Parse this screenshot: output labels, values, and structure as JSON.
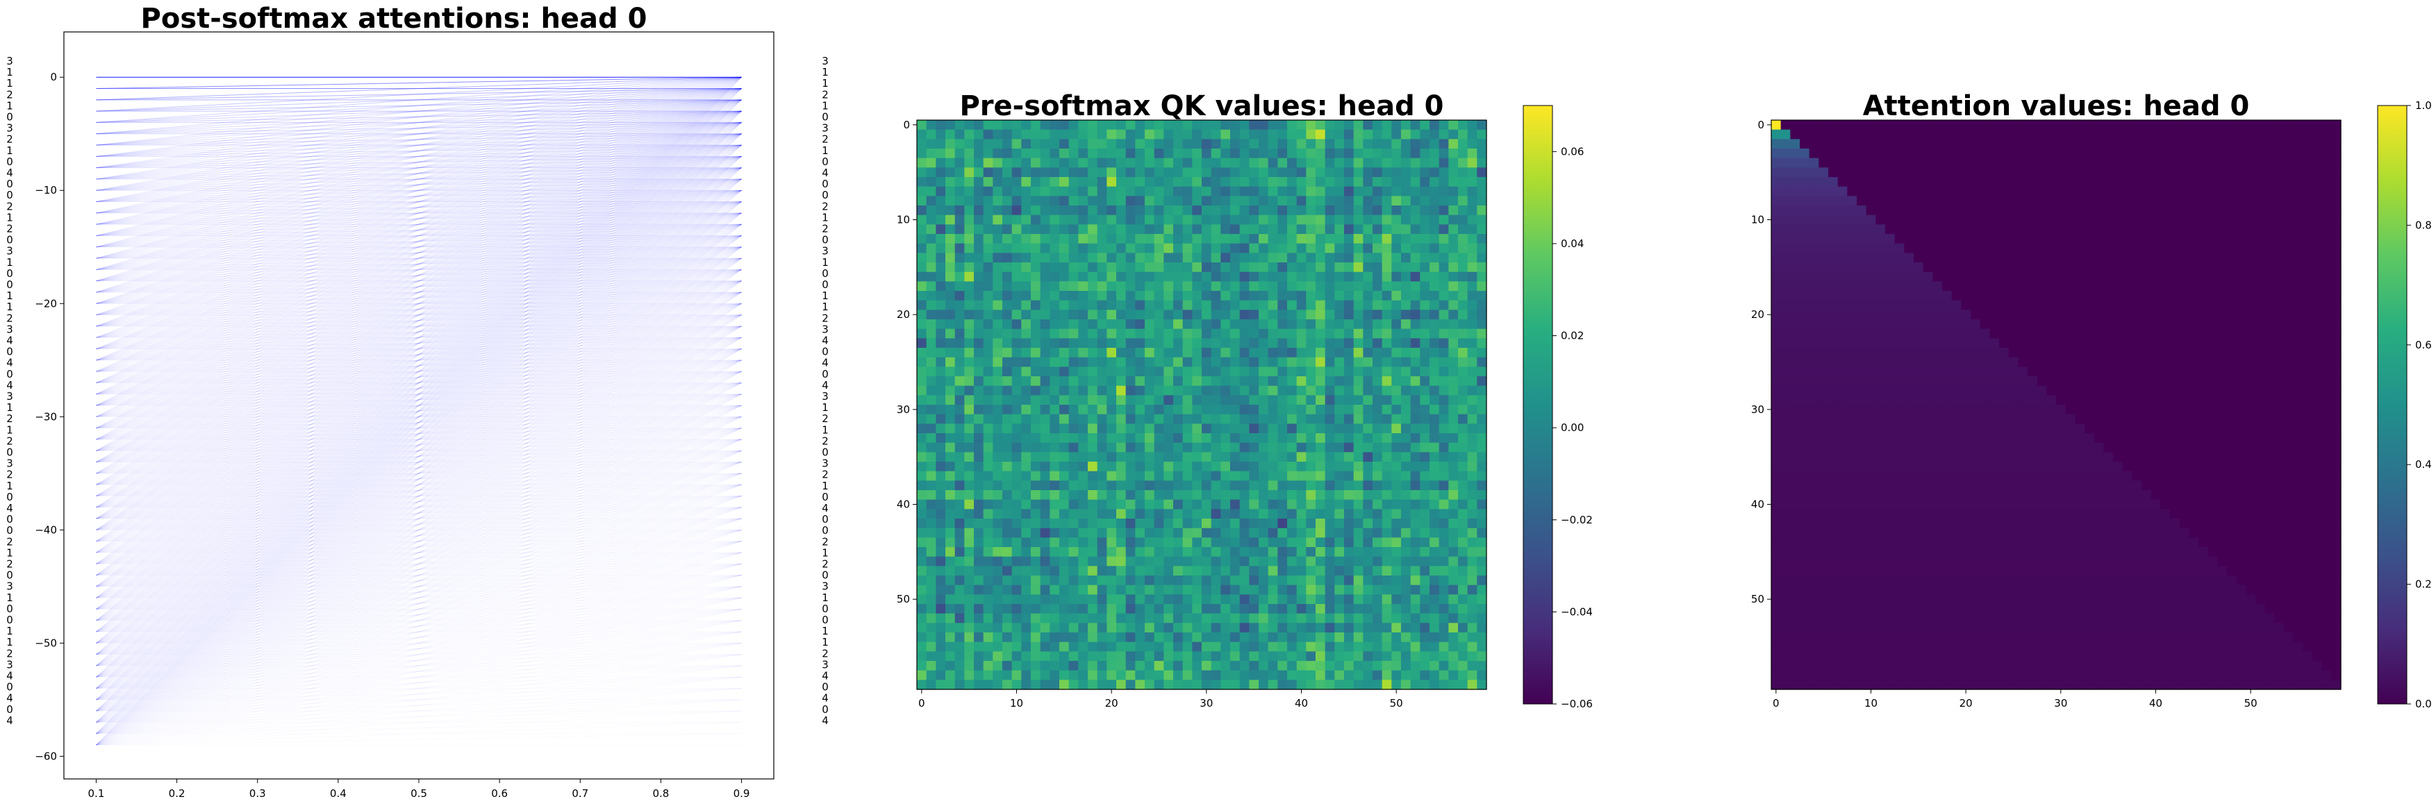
{
  "chart_data": [
    {
      "type": "line",
      "title": "Post-softmax attentions: head 0",
      "xlabel": "",
      "ylabel": "",
      "xlim": [
        0.06,
        0.94
      ],
      "ylim": [
        -62,
        4
      ],
      "x_ticks": [
        "0.1",
        "0.2",
        "0.3",
        "0.4",
        "0.5",
        "0.6",
        "0.7",
        "0.8",
        "0.9"
      ],
      "y_ticks": [
        "0",
        "−10",
        "−20",
        "−30",
        "−40",
        "−50",
        "−60"
      ],
      "line_color": "#0000ff",
      "n_rows": 60,
      "x_start": 0.1,
      "x_end": 0.9,
      "row_step": -1,
      "token_labels": [
        "3",
        "1",
        "1",
        "2",
        "1",
        "0",
        "3",
        "2",
        "1",
        "0",
        "4",
        "0",
        "0",
        "2",
        "1",
        "2",
        "0",
        "3",
        "1",
        "0",
        "0",
        "1",
        "1",
        "2",
        "3",
        "4",
        "0",
        "4",
        "0",
        "4",
        "3",
        "1",
        "2",
        "1",
        "2",
        "0",
        "3",
        "2",
        "1",
        "0",
        "4",
        "0",
        "0",
        "2",
        "1",
        "2",
        "0",
        "3",
        "1",
        "0",
        "0",
        "1",
        "1",
        "2",
        "3",
        "4",
        "0",
        "4",
        "0",
        "4"
      ],
      "grid": false
    },
    {
      "type": "heatmap",
      "title": "Pre-softmax QK values: head 0",
      "rows": 60,
      "cols": 60,
      "colormap": "viridis",
      "vmin": -0.06,
      "vmax": 0.07,
      "x_ticks": [
        "0",
        "10",
        "20",
        "30",
        "40",
        "50"
      ],
      "y_ticks": [
        "0",
        "10",
        "20",
        "30",
        "40",
        "50"
      ],
      "colorbar_ticks": [
        "0.06",
        "0.04",
        "0.02",
        "0.00",
        "−0.02",
        "−0.04",
        "−0.06"
      ],
      "seed": 7
    },
    {
      "type": "heatmap",
      "title": "Attention values: head 0",
      "rows": 60,
      "cols": 60,
      "colormap": "viridis",
      "vmin": 0.0,
      "vmax": 1.0,
      "mask": "causal-softmax",
      "x_ticks": [
        "0",
        "10",
        "20",
        "30",
        "40",
        "50"
      ],
      "y_ticks": [
        "0",
        "10",
        "20",
        "30",
        "40",
        "50"
      ],
      "colorbar_ticks": [
        "1.0",
        "0.8",
        "0.6",
        "0.4",
        "0.2",
        "0.0"
      ]
    }
  ]
}
